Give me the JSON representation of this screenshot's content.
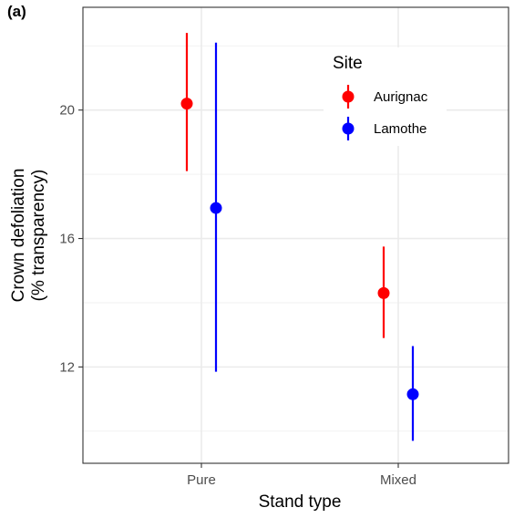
{
  "panel_label": "(a)",
  "chart_data": {
    "type": "scatter",
    "subtype": "point-range",
    "xlabel": "Stand type",
    "ylabel_lines": [
      "Crown defoliation",
      "(% transparency)"
    ],
    "categories": [
      "Pure",
      "Mixed"
    ],
    "ylim": [
      9.0,
      23.2
    ],
    "y_ticks": [
      12,
      16,
      20
    ],
    "y_minor_ticks": [
      10,
      14,
      18,
      22
    ],
    "grid": true,
    "legend": {
      "title": "Site",
      "position": "top-right-inside"
    },
    "series": [
      {
        "name": "Aurignac",
        "color": "#FF0000",
        "values": [
          20.2,
          14.3
        ],
        "lower": [
          18.1,
          12.9
        ],
        "upper": [
          22.4,
          15.75
        ]
      },
      {
        "name": "Lamothe",
        "color": "#0000FF",
        "values": [
          16.95,
          11.15
        ],
        "lower": [
          11.85,
          9.7
        ],
        "upper": [
          22.1,
          12.65
        ]
      }
    ]
  }
}
